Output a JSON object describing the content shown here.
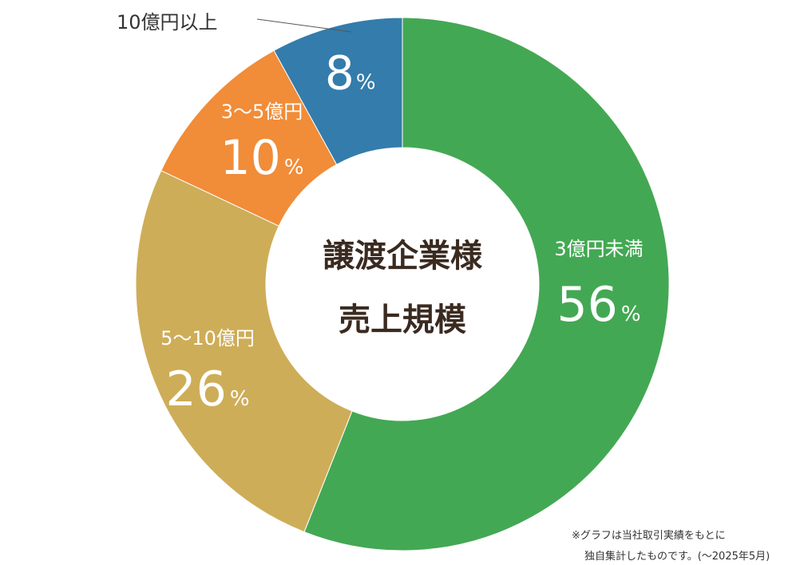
{
  "chart_data": {
    "type": "pie",
    "style": "donut",
    "center_title": [
      "譲渡企業様",
      "売上規模"
    ],
    "slices": [
      {
        "label": "3億円未満",
        "value": 56,
        "value_text": "56",
        "unit": "%",
        "color": "#43a853",
        "label_placement": "inside"
      },
      {
        "label": "5〜10億円",
        "value": 26,
        "value_text": "26",
        "unit": "%",
        "color": "#cead58",
        "label_placement": "inside"
      },
      {
        "label": "3〜5億円",
        "value": 10,
        "value_text": "10",
        "unit": "%",
        "color": "#f18c38",
        "label_placement": "inside"
      },
      {
        "label": "10億円以上",
        "value": 8,
        "value_text": "8",
        "unit": "%",
        "color": "#337cac",
        "label_placement": "outside-leader"
      }
    ],
    "footnote": [
      "※グラフは当社取引実績をもとに",
      "独自集計したものです。(〜2025年5月)"
    ]
  }
}
